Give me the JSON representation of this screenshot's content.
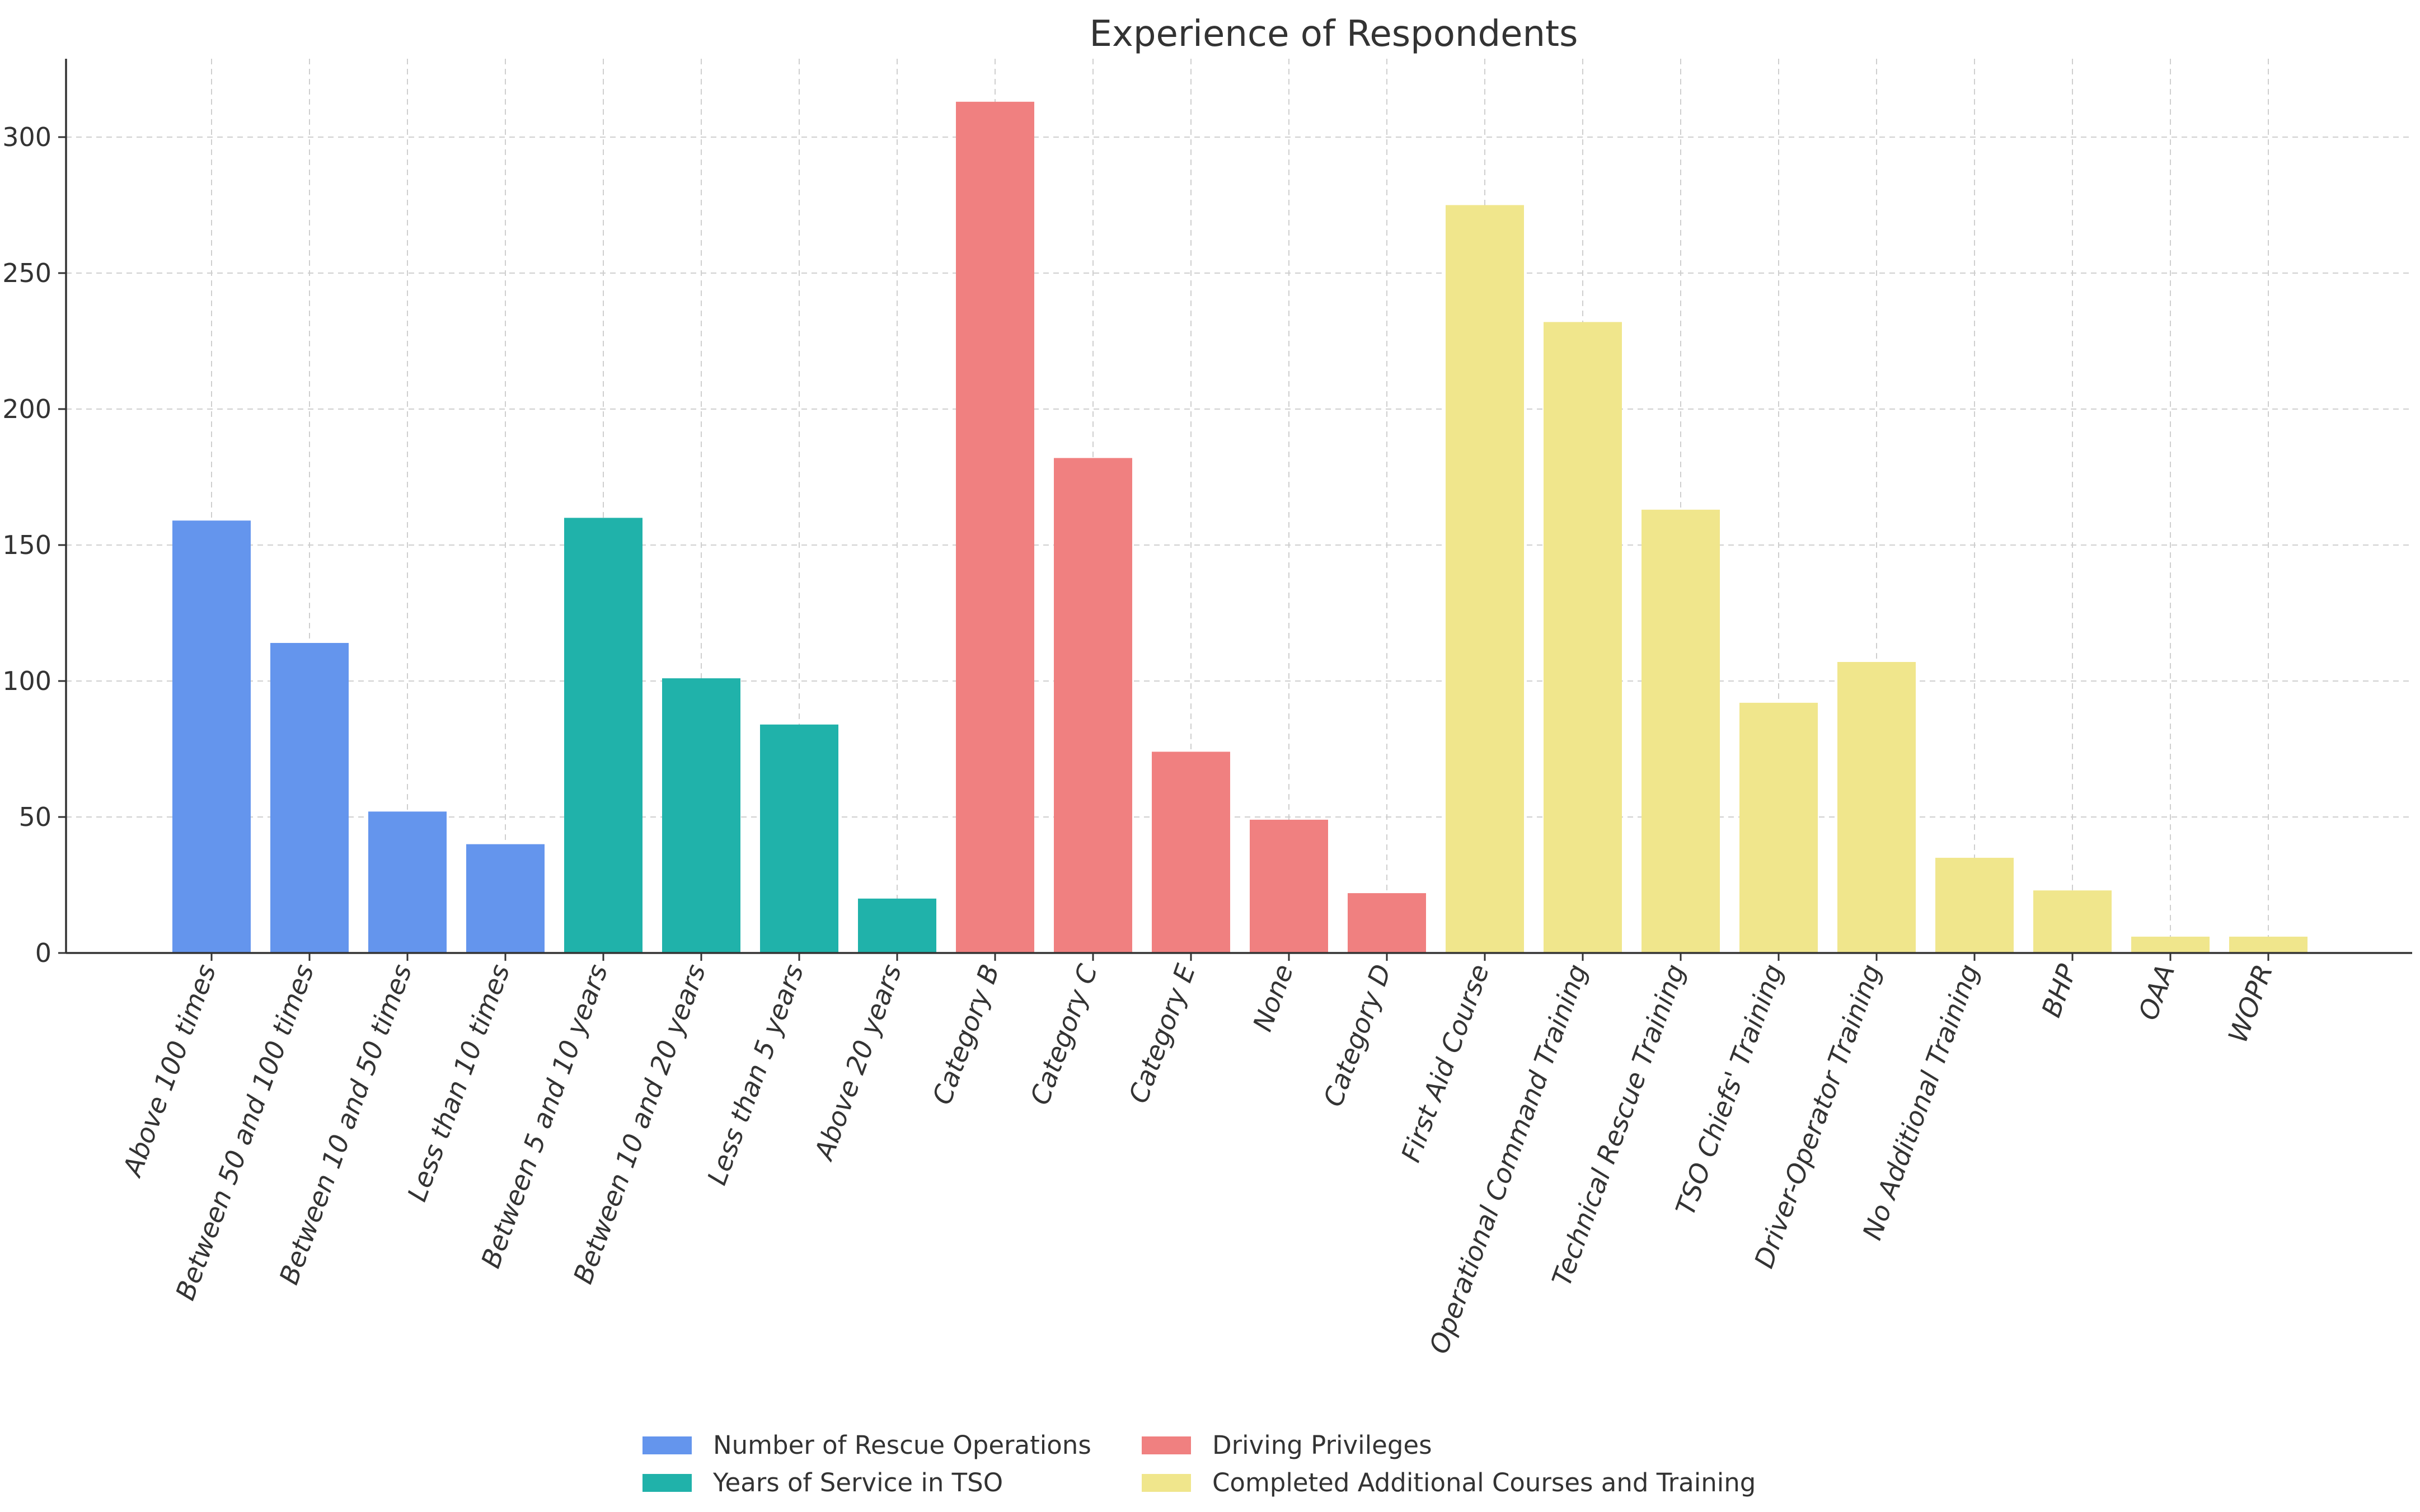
{
  "chart_data": {
    "type": "bar",
    "title": "Experience of Respondents",
    "xlabel": "",
    "ylabel": "",
    "ylim": [
      0,
      330
    ],
    "yticks": [
      0,
      50,
      100,
      150,
      200,
      250,
      300
    ],
    "grid": true,
    "legend_position": "bottom-center",
    "series": [
      {
        "name": "Number of Rescue Operations",
        "color": "#6495ED",
        "categories": [
          "Above 100 times",
          "Between 50 and 100 times",
          "Between 10 and 50 times",
          "Less than 10 times"
        ],
        "values": [
          159,
          114,
          52,
          40
        ]
      },
      {
        "name": "Years of Service in TSO",
        "color": "#20B2AA",
        "categories": [
          "Between 5 and 10 years",
          "Between 10 and 20 years",
          "Less than 5 years",
          "Above 20 years"
        ],
        "values": [
          160,
          101,
          84,
          20
        ]
      },
      {
        "name": "Driving Privileges",
        "color": "#F08080",
        "categories": [
          "Category B",
          "Category C",
          "Category E",
          "None",
          "Category D"
        ],
        "values": [
          313,
          182,
          74,
          49,
          22
        ]
      },
      {
        "name": "Completed Additional Courses and Training",
        "color": "#F0E68C",
        "categories": [
          "First Aid Course",
          "Operational Command Training",
          "Technical Rescue Training",
          "TSO Chiefs' Training",
          "Driver-Operator Training",
          "No Additional Training",
          "BHP",
          "OAA",
          "WOPR"
        ],
        "values": [
          275,
          232,
          163,
          92,
          107,
          35,
          23,
          6,
          6
        ]
      }
    ]
  }
}
